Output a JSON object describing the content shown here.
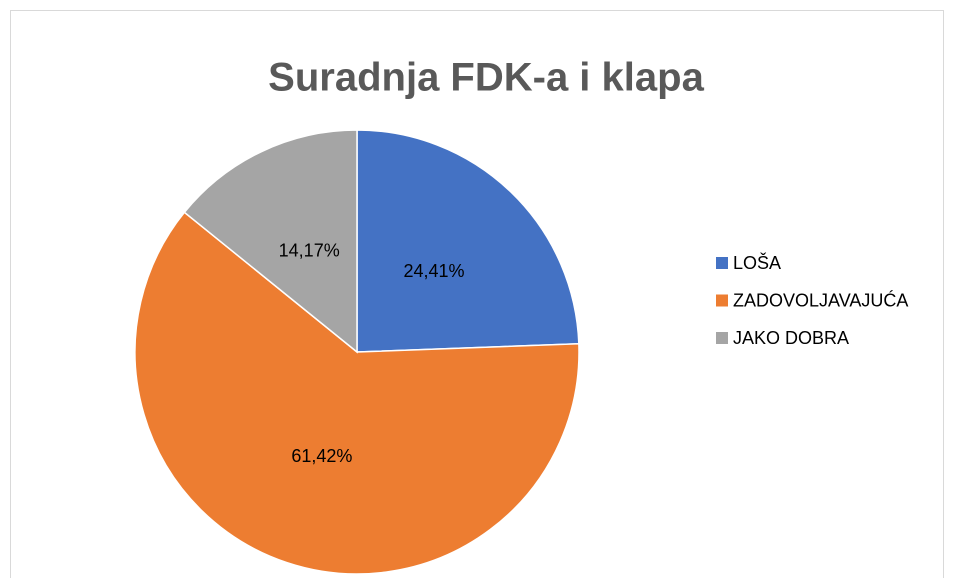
{
  "chart_data": {
    "type": "pie",
    "title": "Suradnja FDK-a i klapa",
    "categories": [
      "LOŠA",
      "ZADOVOLJAVAJUĆA",
      "JAKO DOBRA"
    ],
    "values": [
      24.41,
      61.42,
      14.17
    ],
    "value_labels": [
      "24,41%",
      "61,42%",
      "14,17%"
    ],
    "colors": [
      "#4472c4",
      "#ed7d31",
      "#a5a5a5"
    ],
    "legend": "right"
  }
}
